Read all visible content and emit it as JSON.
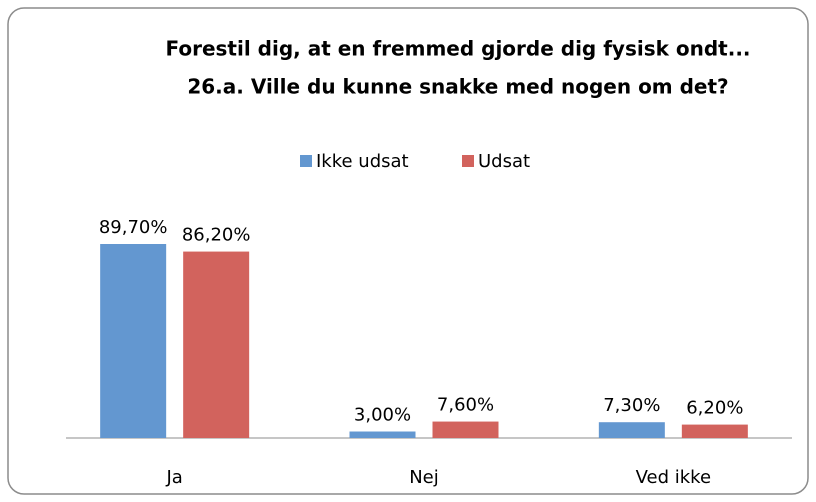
{
  "chart_data": {
    "type": "bar",
    "title": [
      "Forestil dig, at en fremmed gjorde dig fysisk ondt...",
      "26.a. Ville du kunne snakke med nogen om det?"
    ],
    "categories": [
      "Ja",
      "Nej",
      "Ved ikke"
    ],
    "series": [
      {
        "name": "Ikke udsat",
        "color": "#6397d0",
        "values": [
          89.7,
          3.0,
          7.3
        ],
        "value_labels": [
          "89,70%",
          "3,00%",
          "7,30%"
        ]
      },
      {
        "name": "Udsat",
        "color": "#d2635d",
        "values": [
          86.2,
          7.6,
          6.2
        ],
        "value_labels": [
          "86,20%",
          "7,60%",
          "6,20%"
        ]
      }
    ],
    "legend": "top"
  }
}
